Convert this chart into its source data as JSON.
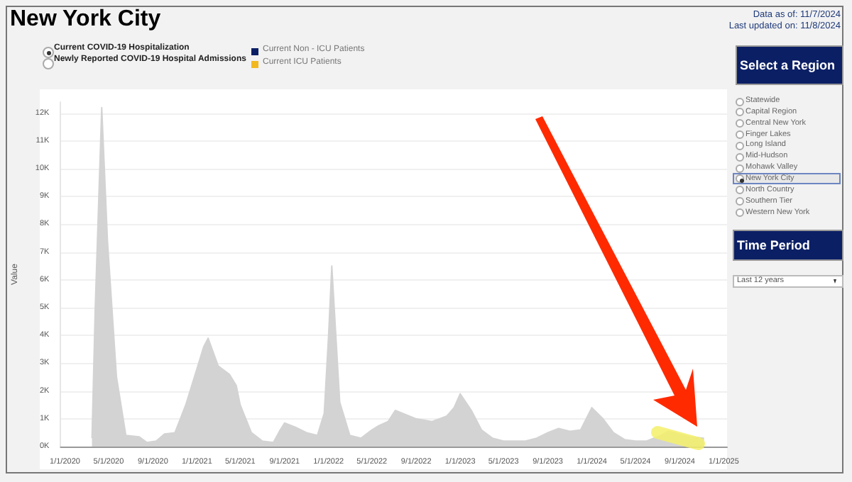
{
  "chart_data": {
    "type": "area",
    "title": "New York City",
    "ylabel": "Value",
    "annotations": [
      "Data as of: 11/7/2024",
      "Last updated on: 11/8/2024",
      "Current COVID-19 Hospitalization",
      "Newly Reported COVID-19 Hospital Admissions",
      "Current Non - ICU Patients",
      "Current ICU Patients",
      "Select a Region",
      "Statewide",
      "Capital Region",
      "Central New York",
      "Finger Lakes",
      "Long Island",
      "Mid-Hudson",
      "Mohawk Valley",
      "New York City",
      "North Country",
      "Southern Tier",
      "Western New York",
      "Time Period",
      "Last 12 years"
    ],
    "x": [
      "2020-03-16",
      "2020-03-25",
      "2020-04-12",
      "2020-04-28",
      "2020-05-23",
      "2020-06-18",
      "2020-07-25",
      "2020-08-15",
      "2020-09-10",
      "2020-10-03",
      "2020-11-01",
      "2020-12-01",
      "2021-01-01",
      "2021-01-20",
      "2021-02-01",
      "2021-03-01",
      "2021-04-01",
      "2021-04-20",
      "2021-05-01",
      "2021-06-01",
      "2021-07-01",
      "2021-08-01",
      "2021-08-20",
      "2021-09-01",
      "2021-10-01",
      "2021-11-01",
      "2021-12-01",
      "2021-12-20",
      "2022-01-01",
      "2022-01-10",
      "2022-02-01",
      "2022-03-01",
      "2022-04-01",
      "2022-05-01",
      "2022-05-20",
      "2022-06-15",
      "2022-07-05",
      "2022-09-01",
      "2022-10-15",
      "2022-11-25",
      "2022-12-15",
      "2023-01-01",
      "2023-02-01",
      "2023-03-01",
      "2023-04-01",
      "2023-05-01",
      "2023-06-01",
      "2023-07-01",
      "2023-08-01",
      "2023-09-01",
      "2023-10-01",
      "2023-11-01",
      "2023-12-01",
      "2024-01-01",
      "2024-02-01",
      "2024-03-01",
      "2024-04-01",
      "2024-05-01",
      "2024-06-01",
      "2024-07-01",
      "2024-08-01",
      "2024-09-01",
      "2024-10-01",
      "2024-11-07"
    ],
    "series": [
      {
        "color": "#d3d3d3",
        "values": [
          300,
          5000,
          12200,
          7400,
          2500,
          400,
          350,
          150,
          200,
          450,
          500,
          1500,
          2800,
          3600,
          3900,
          2900,
          2600,
          2200,
          1500,
          500,
          200,
          150,
          600,
          850,
          700,
          500,
          400,
          1200,
          4000,
          6500,
          1600,
          400,
          300,
          600,
          750,
          900,
          1300,
          1000,
          900,
          1100,
          1400,
          1900,
          1300,
          600,
          300,
          200,
          200,
          200,
          300,
          500,
          650,
          550,
          600,
          1400,
          1000,
          500,
          250,
          200,
          200,
          350,
          550,
          450,
          350,
          300
        ]
      }
    ],
    "xlim": [
      "2019-12-20",
      "2025-01-10"
    ],
    "xticks": [
      {
        "value": "2020-01-01",
        "label": "1/1/2020"
      },
      {
        "value": "2020-05-01",
        "label": "5/1/2020"
      },
      {
        "value": "2020-09-01",
        "label": "9/1/2020"
      },
      {
        "value": "2021-01-01",
        "label": "1/1/2021"
      },
      {
        "value": "2021-05-01",
        "label": "5/1/2021"
      },
      {
        "value": "2021-09-01",
        "label": "9/1/2021"
      },
      {
        "value": "2022-01-01",
        "label": "1/1/2022"
      },
      {
        "value": "2022-05-01",
        "label": "5/1/2022"
      },
      {
        "value": "2022-09-01",
        "label": "9/1/2022"
      },
      {
        "value": "2023-01-01",
        "label": "1/1/2023"
      },
      {
        "value": "2023-05-01",
        "label": "5/1/2023"
      },
      {
        "value": "2023-09-01",
        "label": "9/1/2023"
      },
      {
        "value": "2024-01-01",
        "label": "1/1/2024"
      },
      {
        "value": "2024-05-01",
        "label": "5/1/2024"
      },
      {
        "value": "2024-09-01",
        "label": "9/1/2024"
      },
      {
        "value": "2025-01-01",
        "label": "1/1/2025"
      }
    ],
    "ylim": [
      0,
      12400
    ],
    "yticks": [
      {
        "value": 0,
        "label": "0K"
      },
      {
        "value": 1000,
        "label": "1K"
      },
      {
        "value": 2000,
        "label": "2K"
      },
      {
        "value": 3000,
        "label": "3K"
      },
      {
        "value": 4000,
        "label": "4K"
      },
      {
        "value": 5000,
        "label": "5K"
      },
      {
        "value": 6000,
        "label": "6K"
      },
      {
        "value": 7000,
        "label": "7K"
      },
      {
        "value": 8000,
        "label": "8K"
      },
      {
        "value": 9000,
        "label": "9K"
      },
      {
        "value": 10000,
        "label": "10K"
      },
      {
        "value": 11000,
        "label": "11K"
      },
      {
        "value": 12000,
        "label": "12K"
      }
    ],
    "grid": "y"
  }
}
